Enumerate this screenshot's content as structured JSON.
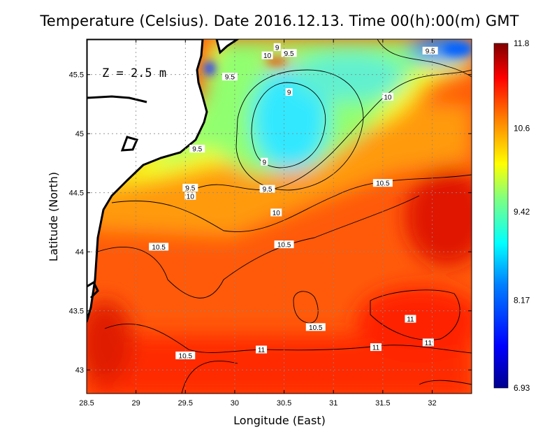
{
  "title": "Temperature (Celsius). Date 2016.12.13. Time 00(h):00(m)  GMT",
  "depth_label": "Z = 2.5 m",
  "axes": {
    "xlabel": "Longitude (East)",
    "ylabel": "Latitude (North)",
    "xlim": [
      28.5,
      32.4
    ],
    "ylim": [
      42.8,
      45.8
    ],
    "xticks": [
      28.5,
      29,
      29.5,
      30,
      30.5,
      31,
      31.5,
      32
    ],
    "xtick_labels": [
      "28.5",
      "29",
      "29.5",
      "30",
      "30.5",
      "31",
      "31.5",
      "32"
    ],
    "yticks": [
      43,
      43.5,
      44,
      44.5,
      45,
      45.5
    ],
    "ytick_labels": [
      "43",
      "43.5",
      "44",
      "44.5",
      "45",
      "45.5"
    ],
    "grid": true
  },
  "colorbar": {
    "min": 6.93,
    "max": 11.8,
    "tick_values": [
      11.8,
      10.6,
      9.42,
      8.17,
      6.93
    ],
    "tick_labels": [
      "11.8",
      "10.6",
      "9.42",
      "8.17",
      "6.93"
    ],
    "colors": [
      "#00008f",
      "#0000ff",
      "#0080ff",
      "#00ffff",
      "#80ff80",
      "#ffff00",
      "#ff8000",
      "#ff0000",
      "#800000"
    ]
  },
  "contour_labels": [
    {
      "text": "9",
      "lon": 30.43,
      "lat": 45.73
    },
    {
      "text": "9.5",
      "lon": 30.55,
      "lat": 45.68
    },
    {
      "text": "10",
      "lon": 30.33,
      "lat": 45.66
    },
    {
      "text": "9.5",
      "lon": 31.98,
      "lat": 45.7
    },
    {
      "text": "9.5",
      "lon": 29.95,
      "lat": 45.48
    },
    {
      "text": "9",
      "lon": 30.55,
      "lat": 45.35
    },
    {
      "text": "10",
      "lon": 31.55,
      "lat": 45.31
    },
    {
      "text": "9.5",
      "lon": 29.62,
      "lat": 44.87
    },
    {
      "text": "9",
      "lon": 30.3,
      "lat": 44.76
    },
    {
      "text": "9.5",
      "lon": 29.55,
      "lat": 44.54
    },
    {
      "text": "9.5",
      "lon": 30.33,
      "lat": 44.53
    },
    {
      "text": "10.5",
      "lon": 31.5,
      "lat": 44.58
    },
    {
      "text": "10",
      "lon": 29.55,
      "lat": 44.47
    },
    {
      "text": "10",
      "lon": 30.42,
      "lat": 44.33
    },
    {
      "text": "10.5",
      "lon": 29.23,
      "lat": 44.04
    },
    {
      "text": "10.5",
      "lon": 30.5,
      "lat": 44.06
    },
    {
      "text": "10.5",
      "lon": 30.82,
      "lat": 43.36
    },
    {
      "text": "11",
      "lon": 31.78,
      "lat": 43.43
    },
    {
      "text": "11",
      "lon": 31.96,
      "lat": 43.23
    },
    {
      "text": "11",
      "lon": 31.43,
      "lat": 43.19
    },
    {
      "text": "11",
      "lon": 30.27,
      "lat": 43.17
    },
    {
      "text": "10.5",
      "lon": 29.5,
      "lat": 43.12
    }
  ],
  "colors": {
    "warm": "#ff3a00",
    "mid": "#ffff30",
    "cool": "#30e8ff",
    "land": "#ffffff",
    "coast": "#000000"
  }
}
